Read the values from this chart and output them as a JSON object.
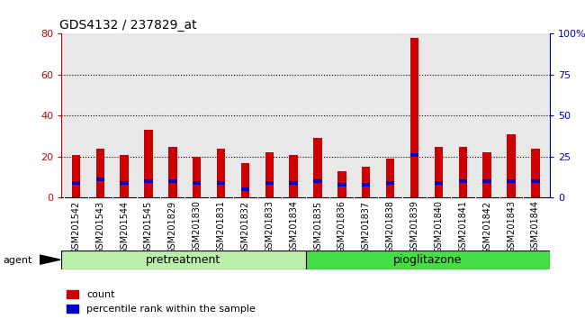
{
  "title": "GDS4132 / 237829_at",
  "categories": [
    "GSM201542",
    "GSM201543",
    "GSM201544",
    "GSM201545",
    "GSM201829",
    "GSM201830",
    "GSM201831",
    "GSM201832",
    "GSM201833",
    "GSM201834",
    "GSM201835",
    "GSM201836",
    "GSM201837",
    "GSM201838",
    "GSM201839",
    "GSM201840",
    "GSM201841",
    "GSM201842",
    "GSM201843",
    "GSM201844"
  ],
  "count_values": [
    21,
    24,
    21,
    33,
    25,
    20,
    24,
    17,
    22,
    21,
    29,
    13,
    15,
    19,
    78,
    25,
    25,
    22,
    31,
    24
  ],
  "percentile_values": [
    9,
    11,
    9,
    10,
    10,
    9,
    9,
    5,
    9,
    9,
    10,
    8,
    8,
    9,
    26,
    9,
    10,
    10,
    10,
    10
  ],
  "count_color": "#cc0000",
  "percentile_color": "#0000cc",
  "left_ylim": [
    0,
    80
  ],
  "right_ylim": [
    0,
    100
  ],
  "left_yticks": [
    0,
    20,
    40,
    60,
    80
  ],
  "right_yticks": [
    0,
    25,
    50,
    75,
    100
  ],
  "right_yticklabels": [
    "0",
    "25",
    "50",
    "75",
    "100%"
  ],
  "grid_values": [
    20,
    40,
    60
  ],
  "group1_label": "pretreatment",
  "group2_label": "pioglitazone",
  "group1_color": "#bbeeaa",
  "group2_color": "#44dd44",
  "group1_count": 10,
  "group2_count": 10,
  "agent_label": "agent",
  "legend_count": "count",
  "legend_percentile": "percentile rank within the sample",
  "bar_width": 0.35,
  "plot_bg_color": "#e8e8e8",
  "xticklabel_bg": "#cccccc",
  "title_fontsize": 10,
  "tick_fontsize": 7,
  "axis_color_left": "#cc0000",
  "axis_color_right": "#0000cc"
}
